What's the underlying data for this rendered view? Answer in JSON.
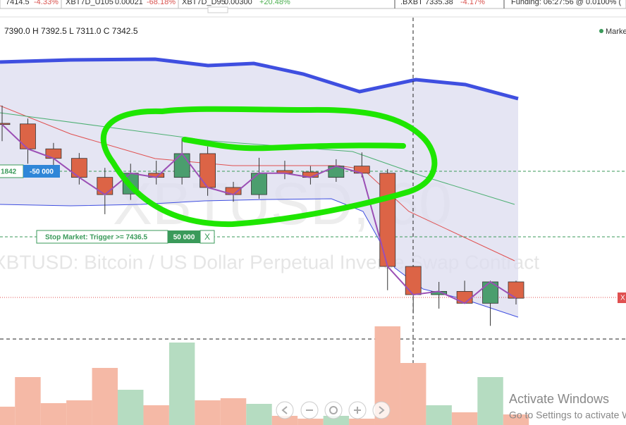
{
  "ticker_bar": {
    "items": [
      {
        "price": "7414.5",
        "change": "-4.33%"
      },
      {
        "symbol": "XBT7D_U105",
        "price": "0.00021",
        "change": "-68.18%"
      },
      {
        "symbol": "XBT7D_D95",
        "price": "0.00300",
        "change": "+20.48%"
      },
      {
        "symbol": ".BXBT",
        "price": "7335.38",
        "change": "-4.17%"
      }
    ],
    "funding": "Funding: 06:27:56 @ 0.0100% ("
  },
  "legend_ohlc": "7390.0 H 7392.5 L 7311.0 C 7342.5",
  "legend_right": "Marke",
  "watermark": {
    "symbol": "XBTUSD, 60",
    "description": "XBTUSD: Bitcoin / US Dollar Perpetual Inverse Swap Contract"
  },
  "orders": [
    {
      "price": "1842",
      "qty": "-50 000"
    },
    {
      "price": "Stop Market: Trigger >= 7436.5",
      "qty": "50 000",
      "close": "X"
    }
  ],
  "right_price_label": "X",
  "windows_notice": {
    "title": "Activate Windows",
    "text": "Go to Settings to activate Windows."
  },
  "chart_data": {
    "type": "candlestick",
    "categories": [
      null,
      null,
      null,
      null,
      null,
      null,
      null,
      null,
      null,
      null,
      null,
      null,
      null,
      null,
      null,
      null,
      null,
      null,
      null,
      null,
      null
    ],
    "open": [
      7631,
      7630,
      7588,
      7572,
      7540,
      7512,
      7547,
      7540,
      7580,
      7523,
      7511,
      7551.5,
      7549,
      7540,
      7559,
      7547,
      7390,
      7342.5,
      7348,
      7328,
      7364
    ],
    "high": [
      7661,
      7639,
      7598,
      7581,
      7556,
      7563,
      7568,
      7606,
      7592,
      7532.5,
      7573,
      7568,
      7559,
      7570.5,
      7582,
      7554,
      7392.5,
      7364,
      7366,
      7366,
      7366
    ],
    "low": [
      7601,
      7563,
      7554,
      7528,
      7478,
      7502,
      7528,
      7528,
      7509,
      7499,
      7504,
      7537,
      7528,
      7532.5,
      7540,
      7350,
      7311,
      7319,
      7328,
      7290,
      7326
    ],
    "close": [
      7629,
      7588,
      7572,
      7540,
      7511,
      7547,
      7540,
      7580,
      7523,
      7511,
      7547,
      7547,
      7540,
      7559,
      7547,
      7390,
      7342.5,
      7348,
      7328,
      7364,
      7336.5
    ],
    "volume": [
      26,
      68,
      31,
      35,
      81,
      50,
      28,
      117,
      35,
      38,
      30,
      13,
      9,
      13,
      9,
      140,
      88,
      28,
      18,
      68,
      15
    ],
    "ylim": [
      7269,
      7809
    ],
    "volume_lim": [
      0,
      150
    ],
    "up_color": "#4b9e6e",
    "down_color": "#dc6446",
    "volume_up_color": "#b5dcc1",
    "volume_down_color": "#f5b9a6",
    "close_line_color": "#9b4fb5"
  }
}
